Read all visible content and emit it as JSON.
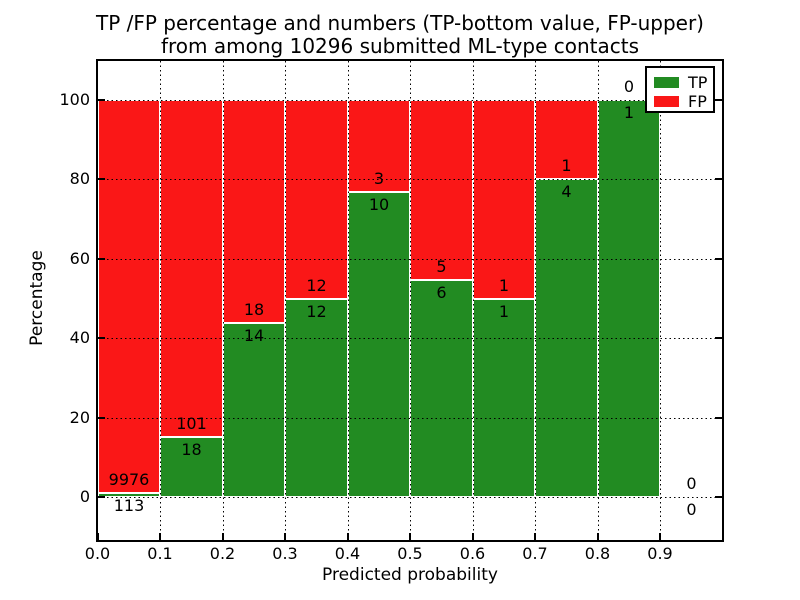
{
  "chart_data": {
    "type": "bar",
    "variant": "stacked-percentage",
    "title_line1": "TP /FP percentage and numbers (TP-bottom value, FP-upper)",
    "title_line2": "from among 10296 submitted ML-type contacts",
    "xlabel": "Predicted probability",
    "ylabel": "Percentage",
    "x_tick_labels": [
      "0.0",
      "0.1",
      "0.2",
      "0.3",
      "0.4",
      "0.5",
      "0.6",
      "0.7",
      "0.8",
      "0.9"
    ],
    "y_ticks": [
      0,
      20,
      40,
      60,
      80,
      100
    ],
    "xlim": [
      0.0,
      1.0
    ],
    "ylim": [
      -11,
      110
    ],
    "bar_width": 0.1,
    "grid_style": "dotted",
    "legend_position": "upper right",
    "bins": [
      {
        "range": [
          0.0,
          0.1
        ],
        "tp": 113,
        "fp": 9976
      },
      {
        "range": [
          0.1,
          0.2
        ],
        "tp": 18,
        "fp": 101
      },
      {
        "range": [
          0.2,
          0.3
        ],
        "tp": 14,
        "fp": 18
      },
      {
        "range": [
          0.3,
          0.4
        ],
        "tp": 12,
        "fp": 12
      },
      {
        "range": [
          0.4,
          0.5
        ],
        "tp": 10,
        "fp": 3
      },
      {
        "range": [
          0.5,
          0.6
        ],
        "tp": 6,
        "fp": 5
      },
      {
        "range": [
          0.6,
          0.7
        ],
        "tp": 1,
        "fp": 1
      },
      {
        "range": [
          0.7,
          0.8
        ],
        "tp": 4,
        "fp": 1
      },
      {
        "range": [
          0.8,
          0.9
        ],
        "tp": 1,
        "fp": 0
      },
      {
        "range": [
          0.9,
          1.0
        ],
        "tp": 0,
        "fp": 0
      }
    ],
    "legend": [
      {
        "label": "TP",
        "color": "#228b22"
      },
      {
        "label": "FP",
        "color": "#fa1717"
      }
    ],
    "colors": {
      "tp": "#228b22",
      "fp": "#fa1717",
      "grid": "#000000",
      "text": "#000000",
      "background": "#ffffff"
    }
  }
}
